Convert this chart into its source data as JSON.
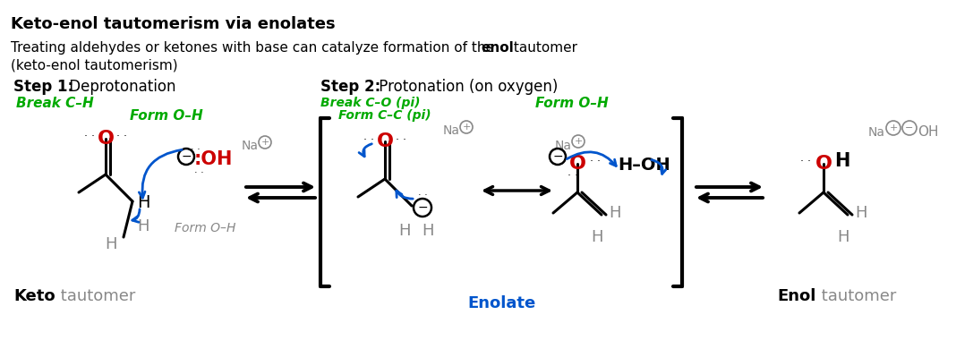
{
  "title": "Keto-enol tautomerism via enolates",
  "subtitle_part1": "Treating aldehydes or ketones with base can catalyze formation of the ",
  "subtitle_bold": "enol",
  "subtitle_part2": " tautomer",
  "subtitle_line2": "(keto-enol tautomerism)",
  "step1_bold": "Step 1:",
  "step1_text": " Deprotonation",
  "step2_bold": "Step 2:",
  "step2_text": " Protonation (on oxygen)",
  "green_break_ch": "Break C–H",
  "green_form_oh_1": "Form O–H",
  "green_form_oh_2": "Form O–H",
  "green_break_co": "Break C–O (pi)",
  "green_form_cc": "Form C–C (pi)",
  "gray_form_oh": "Form O–H",
  "enolate_label": "Enolate",
  "keto_label_bold": "Keto",
  "keto_label_gray": " tautomer",
  "enol_label_bold": "Enol",
  "enol_label_gray": " tautomer",
  "bg_color": "#ffffff",
  "black": "#000000",
  "red": "#cc0000",
  "green": "#00aa00",
  "blue": "#0055cc",
  "gray": "#888888",
  "dark_gray": "#555555"
}
